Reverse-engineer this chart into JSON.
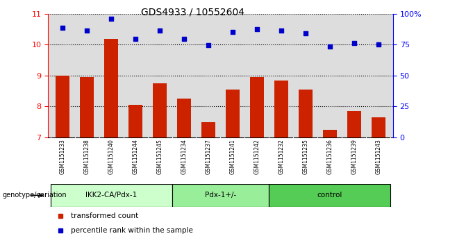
{
  "title": "GDS4933 / 10552604",
  "samples": [
    "GSM1151233",
    "GSM1151238",
    "GSM1151240",
    "GSM1151244",
    "GSM1151245",
    "GSM1151234",
    "GSM1151237",
    "GSM1151241",
    "GSM1151242",
    "GSM1151232",
    "GSM1151235",
    "GSM1151236",
    "GSM1151239",
    "GSM1151243"
  ],
  "bar_values": [
    9.0,
    8.95,
    10.2,
    8.05,
    8.75,
    8.25,
    7.5,
    8.55,
    8.95,
    8.85,
    8.55,
    7.25,
    7.85,
    7.65
  ],
  "dot_values": [
    10.55,
    10.45,
    10.85,
    10.2,
    10.45,
    10.2,
    9.98,
    10.42,
    10.5,
    10.45,
    10.38,
    9.95,
    10.05,
    10.0
  ],
  "groups": [
    {
      "label": "IKK2-CA/Pdx-1",
      "start": 0,
      "end": 5,
      "color": "#ccffcc"
    },
    {
      "label": "Pdx-1+/-",
      "start": 5,
      "end": 9,
      "color": "#99ee99"
    },
    {
      "label": "control",
      "start": 9,
      "end": 14,
      "color": "#55cc55"
    }
  ],
  "bar_color": "#cc2200",
  "dot_color": "#0000cc",
  "ylim_left": [
    7,
    11
  ],
  "ylim_right": [
    0,
    100
  ],
  "yticks_left": [
    7,
    8,
    9,
    10,
    11
  ],
  "yticks_right": [
    0,
    25,
    50,
    75,
    100
  ],
  "ylabel_right_ticks": [
    "0",
    "25",
    "50",
    "75",
    "100%"
  ],
  "background_color": "#ffffff",
  "plot_bg_color": "#dddddd",
  "xtick_bg_color": "#cccccc",
  "genotype_label": "genotype/variation",
  "legend_bar": "transformed count",
  "legend_dot": "percentile rank within the sample"
}
